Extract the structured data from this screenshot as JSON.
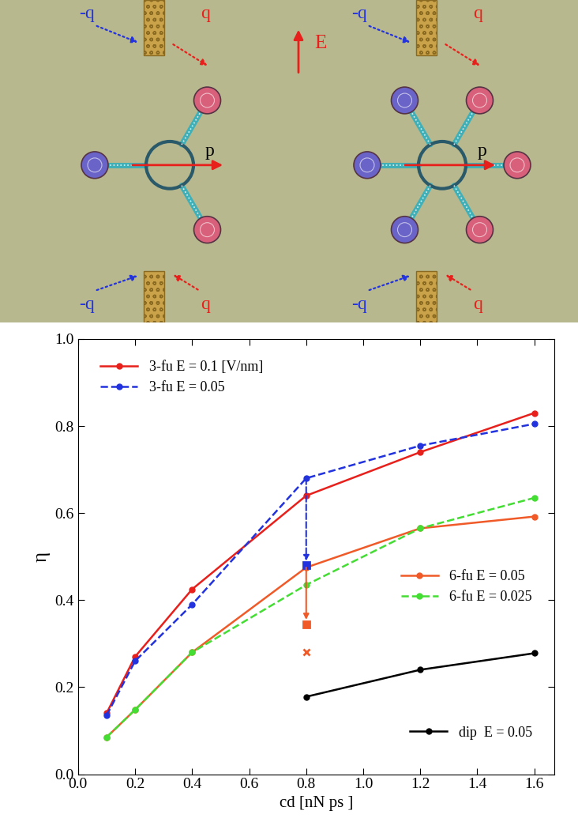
{
  "diagram": {
    "charge_neg": "-q",
    "charge_pos": "q",
    "field": "E",
    "dipole": "p"
  },
  "chart_data": {
    "type": "line",
    "x_label": "cd [nN ps ]",
    "y_label": "η",
    "xlim": [
      0,
      1.67
    ],
    "ylim": [
      0,
      1.0
    ],
    "xticks": [
      {
        "value": 0,
        "label": "0.0"
      },
      {
        "value": 0.2,
        "label": "0.2"
      },
      {
        "value": 0.4,
        "label": "0.4"
      },
      {
        "value": 0.6,
        "label": "0.6"
      },
      {
        "value": 0.8,
        "label": "0.8"
      },
      {
        "value": 1.0,
        "label": "1.0"
      },
      {
        "value": 1.2,
        "label": "1.2"
      },
      {
        "value": 1.4,
        "label": "1.4"
      },
      {
        "value": 1.6,
        "label": "1.6"
      }
    ],
    "yticks": [
      {
        "value": 0,
        "label": "0.0"
      },
      {
        "value": 0.2,
        "label": "0.2"
      },
      {
        "value": 0.4,
        "label": "0.4"
      },
      {
        "value": 0.6,
        "label": "0.6"
      },
      {
        "value": 0.8,
        "label": "0.8"
      },
      {
        "value": 1.0,
        "label": "1.0"
      }
    ],
    "series": [
      {
        "name": "3-fu E = 0.1 [V/nm]",
        "color": "#e8201c",
        "line_style": "solid",
        "marker": "circle",
        "legend": "upper left",
        "x": [
          0.1,
          0.2,
          0.4,
          0.8,
          1.2,
          1.6
        ],
        "values": [
          0.14,
          0.27,
          0.425,
          0.64,
          0.74,
          0.83
        ]
      },
      {
        "name": "3-fu E = 0.05",
        "color": "#2233dd",
        "line_style": "dashed",
        "marker": "circle",
        "legend": "upper left",
        "x": [
          0.1,
          0.2,
          0.4,
          0.8,
          1.2,
          1.6
        ],
        "values": [
          0.135,
          0.26,
          0.39,
          0.68,
          0.755,
          0.805
        ]
      },
      {
        "name": "6-fu E = 0.05",
        "color": "#f05a28",
        "line_style": "solid",
        "marker": "circle",
        "legend": "center right",
        "x": [
          0.1,
          0.2,
          0.4,
          0.8,
          1.2,
          1.6
        ],
        "values": [
          0.085,
          0.148,
          0.28,
          0.475,
          0.565,
          0.592
        ]
      },
      {
        "name": "6-fu E = 0.025",
        "color": "#44dd33",
        "line_style": "dashed",
        "marker": "circle",
        "legend": "center right",
        "x": [
          0.1,
          0.2,
          0.4,
          0.8,
          1.2,
          1.6
        ],
        "values": [
          0.085,
          0.148,
          0.28,
          0.435,
          0.565,
          0.635
        ]
      },
      {
        "name": "dip  E = 0.05",
        "color": "#000000",
        "line_style": "solid",
        "marker": "circle",
        "legend": "lower right",
        "x": [
          0.8,
          1.2,
          1.6
        ],
        "values": [
          0.178,
          0.24,
          0.278
        ]
      }
    ],
    "points": [
      {
        "x": 0.8,
        "y": 0.48,
        "color": "#2233dd",
        "marker": "square"
      },
      {
        "x": 0.8,
        "y": 0.345,
        "color": "#f05a28",
        "marker": "square"
      },
      {
        "x": 0.8,
        "y": 0.28,
        "color": "#f05a28",
        "marker": "x"
      }
    ],
    "arrows": [
      {
        "x": 0.8,
        "from": 0.68,
        "to": 0.49,
        "color": "#2233dd",
        "line_style": "dashed"
      },
      {
        "x": 0.8,
        "from": 0.475,
        "to": 0.355,
        "color": "#f05a28",
        "line_style": "solid"
      }
    ]
  }
}
